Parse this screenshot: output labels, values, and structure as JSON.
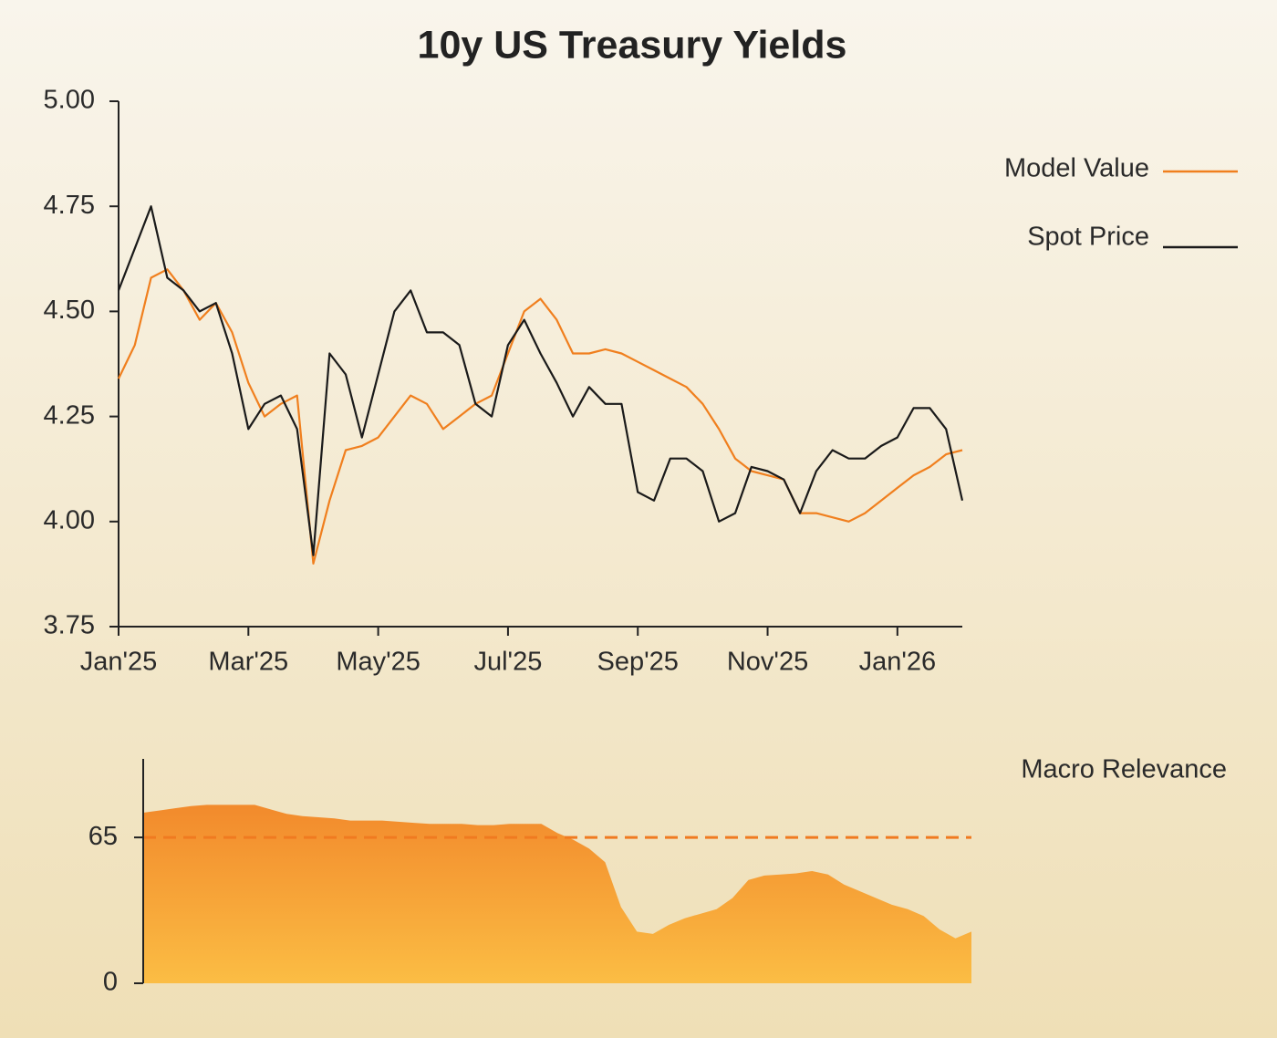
{
  "chart_data": [
    {
      "type": "line",
      "title": "10y US Treasury Yields",
      "categories": [
        "Jan'25",
        null,
        null,
        null,
        null,
        null,
        null,
        null,
        "Mar'25",
        null,
        null,
        null,
        null,
        null,
        null,
        null,
        "May'25",
        null,
        null,
        null,
        null,
        null,
        null,
        null,
        "Jul'25",
        null,
        null,
        null,
        null,
        null,
        null,
        null,
        "Sep'25",
        null,
        null,
        null,
        null,
        null,
        null,
        null,
        "Nov'25",
        null,
        null,
        null,
        null,
        null,
        null,
        null,
        "Jan'26",
        null,
        null,
        null,
        null
      ],
      "series": [
        {
          "name": "Model Value",
          "color": "#f07f1e",
          "values": [
            4.34,
            4.42,
            4.58,
            4.6,
            4.55,
            4.48,
            4.52,
            4.45,
            4.33,
            4.25,
            4.28,
            4.3,
            3.9,
            4.05,
            4.17,
            4.18,
            4.2,
            4.25,
            4.3,
            4.28,
            4.22,
            4.25,
            4.28,
            4.3,
            4.4,
            4.5,
            4.53,
            4.48,
            4.4,
            4.4,
            4.41,
            4.4,
            4.38,
            4.36,
            4.34,
            4.32,
            4.28,
            4.22,
            4.15,
            4.12,
            4.11,
            4.1,
            4.02,
            4.02,
            4.01,
            4.0,
            4.02,
            4.05,
            4.08,
            4.11,
            4.13,
            4.16,
            4.17
          ]
        },
        {
          "name": "Spot Price",
          "color": "#1a1a1a",
          "values": [
            4.55,
            4.65,
            4.75,
            4.58,
            4.55,
            4.5,
            4.52,
            4.4,
            4.22,
            4.28,
            4.3,
            4.22,
            3.92,
            4.4,
            4.35,
            4.2,
            4.35,
            4.5,
            4.55,
            4.45,
            4.45,
            4.42,
            4.28,
            4.25,
            4.42,
            4.48,
            4.4,
            4.33,
            4.25,
            4.32,
            4.28,
            4.28,
            4.07,
            4.05,
            4.15,
            4.15,
            4.12,
            4.0,
            4.02,
            4.13,
            4.12,
            4.1,
            4.02,
            4.12,
            4.17,
            4.15,
            4.15,
            4.18,
            4.2,
            4.27,
            4.27,
            4.22,
            4.05
          ]
        }
      ],
      "ylim": [
        3.75,
        5.0
      ],
      "yticks": [
        {
          "value": 5,
          "label": "5.00"
        },
        4.75,
        {
          "value": 4.5,
          "label": "4.50"
        },
        4.25,
        {
          "value": 4,
          "label": "4.00"
        },
        3.75
      ],
      "grid": false,
      "legend": "right"
    },
    {
      "type": "area",
      "series": [
        {
          "name": "Macro Relevance",
          "color": "#f7a535",
          "values": [
            76,
            77,
            78,
            79,
            79.5,
            79.5,
            79.5,
            79.5,
            77.5,
            75.5,
            74.5,
            74,
            73.5,
            72.5,
            72.5,
            72.5,
            72,
            71.5,
            71,
            71,
            71,
            70.5,
            70.5,
            71,
            71,
            71,
            67,
            64,
            60,
            54,
            34,
            23,
            22,
            26,
            29,
            31,
            33,
            38,
            46,
            48,
            48.5,
            49,
            50,
            48.5,
            44,
            41,
            38,
            35,
            33,
            30,
            24,
            20,
            23
          ]
        }
      ],
      "ylim": [
        0,
        100
      ],
      "yticks": [
        65,
        0
      ],
      "grid": "dashed",
      "grid_color": "#f07a20",
      "legend": "top-right"
    }
  ]
}
